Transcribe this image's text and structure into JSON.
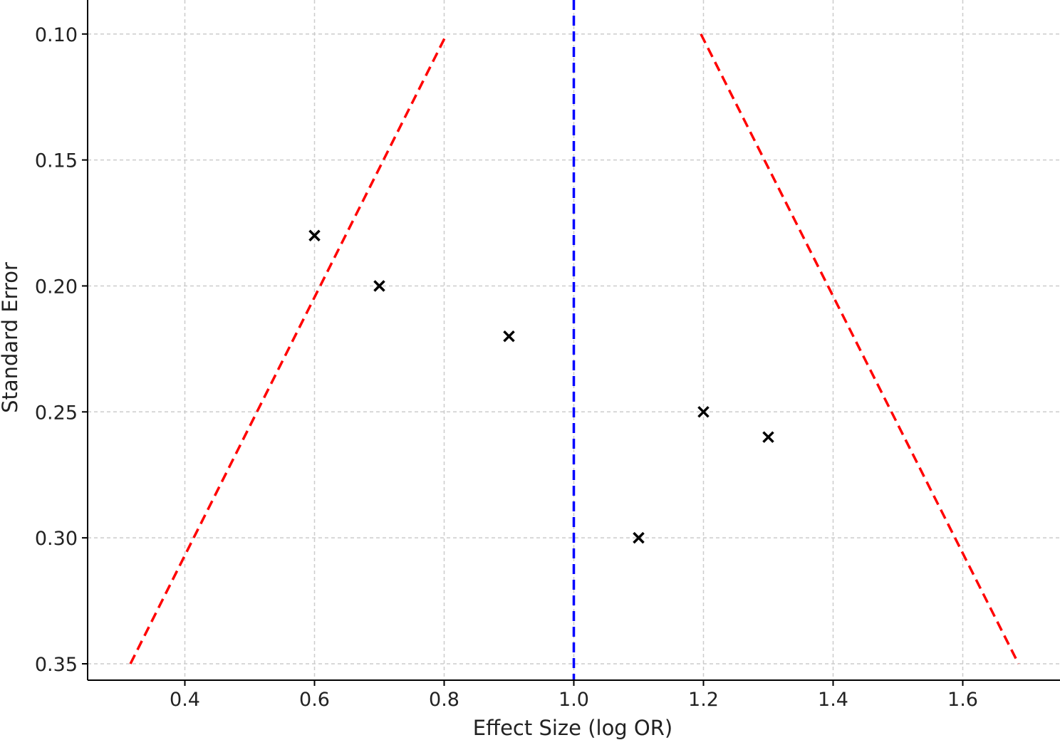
{
  "chart_data": {
    "type": "scatter",
    "title": "",
    "xlabel": "Effect Size (log OR)",
    "ylabel": "Standard Error",
    "xlim": [
      0.25,
      1.75
    ],
    "ylim": [
      0.0865,
      0.3565
    ],
    "y_inverted": true,
    "grid": true,
    "x_ticks": [
      0.4,
      0.6,
      0.8,
      1.0,
      1.2,
      1.4,
      1.6
    ],
    "x_tick_labels": [
      "0.4",
      "0.6",
      "0.8",
      "1.0",
      "1.2",
      "1.4",
      "1.6"
    ],
    "y_ticks": [
      0.1,
      0.15,
      0.2,
      0.25,
      0.3,
      0.35
    ],
    "y_tick_labels": [
      "0.10",
      "0.15",
      "0.20",
      "0.25",
      "0.30",
      "0.35"
    ],
    "points": [
      {
        "x": 0.6,
        "y": 0.18
      },
      {
        "x": 0.7,
        "y": 0.2
      },
      {
        "x": 0.9,
        "y": 0.22
      },
      {
        "x": 1.1,
        "y": 0.3
      },
      {
        "x": 1.2,
        "y": 0.25
      },
      {
        "x": 1.3,
        "y": 0.26
      }
    ],
    "marker": "x",
    "marker_color": "#000000",
    "center_line": {
      "x": 1.0,
      "color": "#0000ff",
      "style": "dashed"
    },
    "funnel_lines": [
      {
        "points": [
          [
            0.316,
            0.35
          ],
          [
            0.804,
            0.1
          ]
        ],
        "color": "#ff0000",
        "style": "dashed"
      },
      {
        "points": [
          [
            1.196,
            0.1
          ],
          [
            1.686,
            0.35
          ]
        ],
        "color": "#ff0000",
        "style": "dashed"
      }
    ]
  }
}
